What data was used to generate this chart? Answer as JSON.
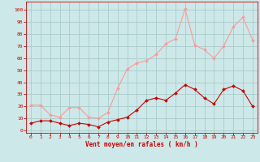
{
  "x": [
    0,
    1,
    2,
    3,
    4,
    5,
    6,
    7,
    8,
    9,
    10,
    11,
    12,
    13,
    14,
    15,
    16,
    17,
    18,
    19,
    20,
    21,
    22,
    23
  ],
  "rafales": [
    21,
    21,
    13,
    11,
    19,
    19,
    11,
    10,
    15,
    35,
    51,
    56,
    58,
    63,
    72,
    76,
    101,
    71,
    67,
    60,
    70,
    86,
    94,
    75
  ],
  "moyen": [
    6,
    8,
    8,
    6,
    4,
    6,
    5,
    3,
    7,
    9,
    11,
    17,
    25,
    27,
    25,
    31,
    38,
    34,
    27,
    22,
    34,
    37,
    33,
    20
  ],
  "bg_color": "#cce8e8",
  "grid_color": "#aacccc",
  "line_color_rafales": "#ff9999",
  "line_color_moyen": "#cc0000",
  "marker_color_rafales": "#ff9999",
  "marker_color_moyen": "#cc0000",
  "xlabel": "Vent moyen/en rafales ( km/h )",
  "xlabel_color": "#cc0000",
  "tick_color": "#cc0000",
  "ylim": [
    -2,
    107
  ],
  "xlim": [
    -0.5,
    23.5
  ],
  "yticks": [
    0,
    10,
    20,
    30,
    40,
    50,
    60,
    70,
    80,
    90,
    100
  ],
  "xticks": [
    0,
    1,
    2,
    3,
    4,
    5,
    6,
    7,
    8,
    9,
    10,
    11,
    12,
    13,
    14,
    15,
    16,
    17,
    18,
    19,
    20,
    21,
    22,
    23
  ]
}
